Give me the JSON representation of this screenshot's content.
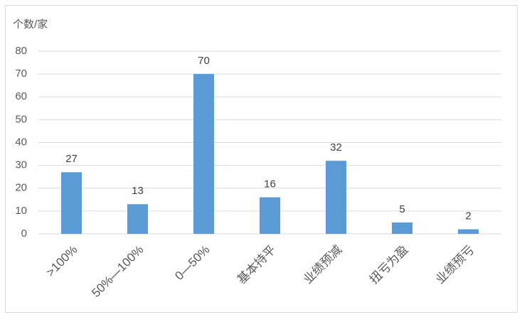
{
  "chart_data": {
    "type": "bar",
    "y_axis_label": "个数/家",
    "categories": [
      ">100%",
      "50%—100%",
      "0—50%",
      "基本持平",
      "业绩预减",
      "扭亏为盈",
      "业绩预亏"
    ],
    "values": [
      27,
      13,
      70,
      16,
      32,
      5,
      2
    ],
    "color": "#5b9bd5",
    "ylim": [
      0,
      80
    ],
    "yticks": [
      0,
      10,
      20,
      30,
      40,
      50,
      60,
      70,
      80
    ],
    "grid": true
  }
}
